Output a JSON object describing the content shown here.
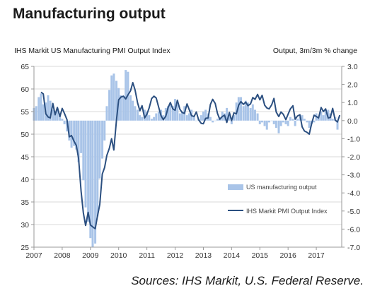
{
  "header": {
    "title": "Manufacturing output",
    "left_axis_caption": "IHS Markit  US Manufacturing PMI Output Index",
    "right_axis_caption": "Output, 3m/3m % change"
  },
  "source": "Sources: IHS Markit, U.S. Federal Reserve.",
  "colors": {
    "pmi_line": "#2b4f80",
    "output_bars": "#a9c4e8",
    "axis": "#999999"
  },
  "chart_data": {
    "type": "bar+line",
    "x_unit": "year (decimal)",
    "xlim": [
      2007.0,
      2017.9
    ],
    "x_tick_labels": [
      "2007",
      "2008",
      "2009",
      "2010",
      "2011",
      "2012",
      "2013",
      "2014",
      "2015",
      "2016",
      "2017"
    ],
    "ylim_left": [
      25,
      65
    ],
    "y_left_ticks": [
      25,
      30,
      35,
      40,
      45,
      50,
      55,
      60,
      65
    ],
    "ylim_right": [
      -7.0,
      3.0
    ],
    "y_right_ticks": [
      "3.0",
      "2.0",
      "1.0",
      "0.0",
      "-1.0",
      "-2.0",
      "-3.0",
      "-4.0",
      "-5.0",
      "-6.0",
      "-7.0"
    ],
    "grid": true,
    "legend_position": "lower-right",
    "series": [
      {
        "name": "US manufacturing output",
        "type": "bar",
        "axis": "right",
        "x": [
          2007.0,
          2007.08,
          2007.17,
          2007.25,
          2007.33,
          2007.42,
          2007.5,
          2007.58,
          2007.67,
          2007.75,
          2007.83,
          2007.92,
          2008.0,
          2008.08,
          2008.17,
          2008.25,
          2008.33,
          2008.42,
          2008.5,
          2008.58,
          2008.67,
          2008.75,
          2008.83,
          2008.92,
          2009.0,
          2009.08,
          2009.17,
          2009.25,
          2009.33,
          2009.42,
          2009.5,
          2009.58,
          2009.67,
          2009.75,
          2009.83,
          2009.92,
          2010.0,
          2010.08,
          2010.17,
          2010.25,
          2010.33,
          2010.42,
          2010.5,
          2010.58,
          2010.67,
          2010.75,
          2010.83,
          2010.92,
          2011.0,
          2011.08,
          2011.17,
          2011.25,
          2011.33,
          2011.42,
          2011.5,
          2011.58,
          2011.67,
          2011.75,
          2011.83,
          2011.92,
          2012.0,
          2012.08,
          2012.17,
          2012.25,
          2012.33,
          2012.42,
          2012.5,
          2012.58,
          2012.67,
          2012.75,
          2012.83,
          2012.92,
          2013.0,
          2013.08,
          2013.17,
          2013.25,
          2013.33,
          2013.42,
          2013.5,
          2013.58,
          2013.67,
          2013.75,
          2013.83,
          2013.92,
          2014.0,
          2014.08,
          2014.17,
          2014.25,
          2014.33,
          2014.42,
          2014.5,
          2014.58,
          2014.67,
          2014.75,
          2014.83,
          2014.92,
          2015.0,
          2015.08,
          2015.17,
          2015.25,
          2015.33,
          2015.42,
          2015.5,
          2015.58,
          2015.67,
          2015.75,
          2015.83,
          2015.92,
          2016.0,
          2016.08,
          2016.17,
          2016.25,
          2016.33,
          2016.42,
          2016.5,
          2016.58,
          2016.67,
          2016.75,
          2016.83,
          2016.92,
          2017.0,
          2017.08,
          2017.17,
          2017.25,
          2017.33,
          2017.42,
          2017.5,
          2017.58,
          2017.67,
          2017.75
        ],
        "values": [
          0.7,
          0.8,
          1.3,
          1.5,
          0.9,
          1.0,
          1.4,
          1.1,
          0.6,
          0.5,
          0.7,
          0.4,
          0.1,
          -0.2,
          -0.6,
          -1.1,
          -1.5,
          -1.4,
          -1.6,
          -2.3,
          -1.8,
          -3.3,
          -4.8,
          -5.6,
          -6.5,
          -7.0,
          -6.8,
          -5.3,
          -3.2,
          -2.1,
          -1.1,
          0.8,
          1.7,
          2.5,
          2.6,
          2.2,
          1.8,
          1.4,
          1.3,
          2.8,
          2.7,
          1.4,
          1.1,
          0.8,
          0.6,
          0.3,
          0.2,
          0.6,
          0.5,
          0.3,
          0.1,
          0.2,
          0.4,
          0.5,
          0.6,
          0.3,
          0.7,
          0.8,
          0.9,
          0.8,
          1.2,
          0.9,
          0.4,
          0.5,
          0.8,
          0.3,
          0.4,
          0.6,
          0.2,
          0.0,
          0.1,
          0.3,
          0.5,
          0.6,
          0.4,
          0.2,
          -0.1,
          0.0,
          0.1,
          0.2,
          0.5,
          0.4,
          0.7,
          0.3,
          -0.2,
          0.3,
          1.0,
          1.3,
          1.3,
          0.8,
          1.1,
          1.0,
          0.7,
          0.9,
          0.6,
          0.4,
          -0.2,
          -0.1,
          -0.3,
          -0.5,
          -0.1,
          0.0,
          -0.2,
          -0.4,
          -0.7,
          -0.3,
          -0.1,
          -0.2,
          -0.3,
          0.2,
          0.1,
          -0.3,
          0.1,
          0.2,
          0.3,
          0.1,
          -0.1,
          -0.4,
          -0.2,
          -0.1,
          0.4,
          0.2,
          0.5,
          0.3,
          0.5,
          0.6,
          0.4,
          0.1,
          0.2,
          -0.5
        ]
      },
      {
        "name": "IHS Markit PMI Output Index",
        "type": "line",
        "axis": "left",
        "x": [
          2007.25,
          2007.33,
          2007.42,
          2007.5,
          2007.58,
          2007.67,
          2007.75,
          2007.83,
          2007.92,
          2008.0,
          2008.08,
          2008.17,
          2008.25,
          2008.33,
          2008.42,
          2008.5,
          2008.58,
          2008.67,
          2008.75,
          2008.83,
          2008.92,
          2009.0,
          2009.08,
          2009.17,
          2009.25,
          2009.33,
          2009.42,
          2009.5,
          2009.58,
          2009.67,
          2009.75,
          2009.83,
          2009.92,
          2010.0,
          2010.08,
          2010.17,
          2010.25,
          2010.33,
          2010.42,
          2010.5,
          2010.58,
          2010.67,
          2010.75,
          2010.83,
          2010.92,
          2011.0,
          2011.08,
          2011.17,
          2011.25,
          2011.33,
          2011.42,
          2011.5,
          2011.58,
          2011.67,
          2011.75,
          2011.83,
          2011.92,
          2012.0,
          2012.08,
          2012.17,
          2012.25,
          2012.33,
          2012.42,
          2012.5,
          2012.58,
          2012.67,
          2012.75,
          2012.83,
          2012.92,
          2013.0,
          2013.08,
          2013.17,
          2013.25,
          2013.33,
          2013.42,
          2013.5,
          2013.58,
          2013.67,
          2013.75,
          2013.83,
          2013.92,
          2014.0,
          2014.08,
          2014.17,
          2014.25,
          2014.33,
          2014.42,
          2014.5,
          2014.58,
          2014.67,
          2014.75,
          2014.83,
          2014.92,
          2015.0,
          2015.08,
          2015.17,
          2015.25,
          2015.33,
          2015.42,
          2015.5,
          2015.58,
          2015.67,
          2015.75,
          2015.83,
          2015.92,
          2016.0,
          2016.08,
          2016.17,
          2016.25,
          2016.33,
          2016.42,
          2016.5,
          2016.58,
          2016.67,
          2016.75,
          2016.83,
          2016.92,
          2017.0,
          2017.08,
          2017.17,
          2017.25,
          2017.33,
          2017.42,
          2017.5,
          2017.58,
          2017.67,
          2017.75,
          2017.83
        ],
        "values": [
          59.3,
          58.9,
          54.5,
          53.8,
          53.6,
          56.8,
          54.3,
          55.9,
          53.9,
          55.7,
          54.6,
          53.2,
          49.4,
          49.7,
          48.4,
          47.5,
          44.6,
          37.4,
          32.6,
          29.8,
          32.7,
          29.9,
          29.5,
          29.1,
          31.9,
          34.4,
          41.2,
          42.6,
          45.3,
          46.9,
          49.0,
          46.5,
          52.9,
          57.6,
          58.2,
          58.4,
          57.8,
          58.7,
          59.6,
          61.4,
          59.8,
          56.9,
          55.2,
          56.3,
          53.6,
          54.4,
          55.8,
          57.9,
          58.4,
          58.0,
          55.9,
          54.1,
          53.2,
          54.0,
          55.9,
          57.0,
          55.6,
          55.3,
          57.5,
          55.5,
          54.8,
          54.6,
          56.7,
          55.4,
          54.1,
          53.9,
          54.9,
          53.2,
          52.4,
          52.3,
          53.5,
          53.6,
          56.6,
          57.7,
          56.8,
          54.6,
          53.3,
          53.9,
          54.2,
          52.6,
          54.8,
          53.0,
          54.7,
          54.5,
          56.4,
          57.2,
          56.6,
          57.1,
          56.3,
          56.7,
          58.1,
          57.7,
          58.8,
          57.6,
          58.6,
          56.4,
          55.8,
          55.6,
          56.5,
          57.9,
          54.9,
          53.9,
          54.9,
          54.4,
          53.2,
          54.4,
          55.6,
          56.3,
          53.3,
          54.0,
          54.3,
          51.6,
          50.7,
          50.4,
          50.0,
          52.2,
          54.2,
          53.9,
          53.6,
          55.9,
          55.0,
          55.6,
          53.6,
          53.7,
          55.7,
          53.1,
          52.7,
          54.2
        ]
      }
    ]
  }
}
